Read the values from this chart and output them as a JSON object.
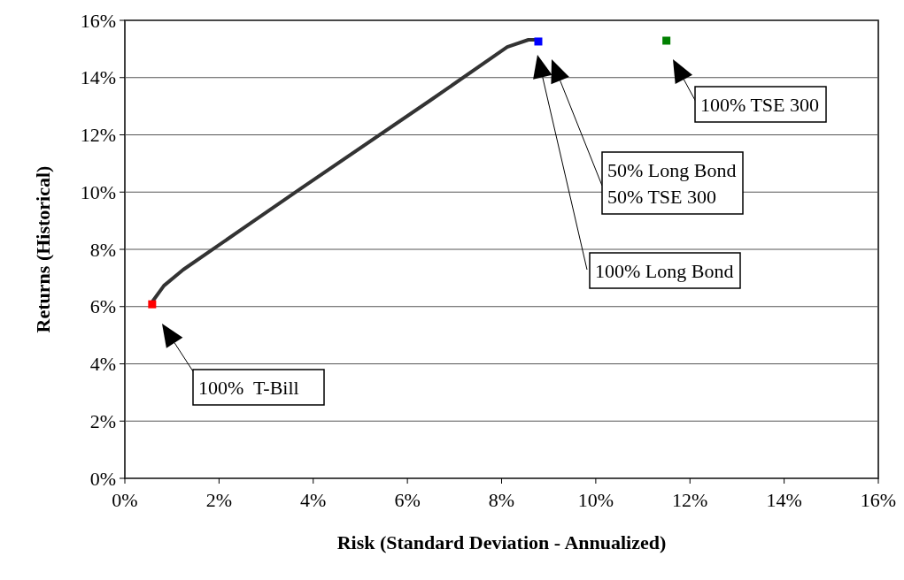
{
  "chart_data": {
    "type": "line",
    "xlabel": "Risk (Standard Deviation - Annualized)",
    "ylabel": "Returns (Historical)",
    "xlim": [
      0,
      16
    ],
    "ylim": [
      0,
      16
    ],
    "xticks": [
      {
        "value": 0,
        "label": "0%"
      },
      {
        "value": 2,
        "label": "2%"
      },
      {
        "value": 4,
        "label": "4%"
      },
      {
        "value": 6,
        "label": "6%"
      },
      {
        "value": 8,
        "label": "8%"
      },
      {
        "value": 10,
        "label": "10%"
      },
      {
        "value": 12,
        "label": "12%"
      },
      {
        "value": 14,
        "label": "14%"
      },
      {
        "value": 16,
        "label": "16%"
      }
    ],
    "yticks": [
      {
        "value": 0,
        "label": "0%"
      },
      {
        "value": 2,
        "label": "2%"
      },
      {
        "value": 4,
        "label": "4%"
      },
      {
        "value": 6,
        "label": "6%"
      },
      {
        "value": 8,
        "label": "8%"
      },
      {
        "value": 10,
        "label": "10%"
      },
      {
        "value": 12,
        "label": "12%"
      },
      {
        "value": 14,
        "label": "14%"
      },
      {
        "value": 16,
        "label": "16%"
      }
    ],
    "grid": "y",
    "series": [
      {
        "color": "#333333",
        "x": [
          0.6,
          0.83,
          1.24,
          3.74,
          6.5,
          8.12,
          8.57,
          8.76
        ],
        "values": [
          6.21,
          6.73,
          7.29,
          10.13,
          13.22,
          15.07,
          15.32,
          15.32
        ]
      },
      {
        "type": "scatter",
        "marker": "square",
        "x": [
          0.58,
          8.78,
          11.5
        ],
        "values": [
          6.08,
          15.26,
          15.29
        ],
        "colors": [
          "#ff0000",
          "#0000ff",
          "#008000"
        ]
      }
    ],
    "annotations": [
      "100%  T-Bill",
      "100% Long Bond",
      "50% Long Bond\n50% TSE 300",
      "100% TSE 300"
    ]
  }
}
